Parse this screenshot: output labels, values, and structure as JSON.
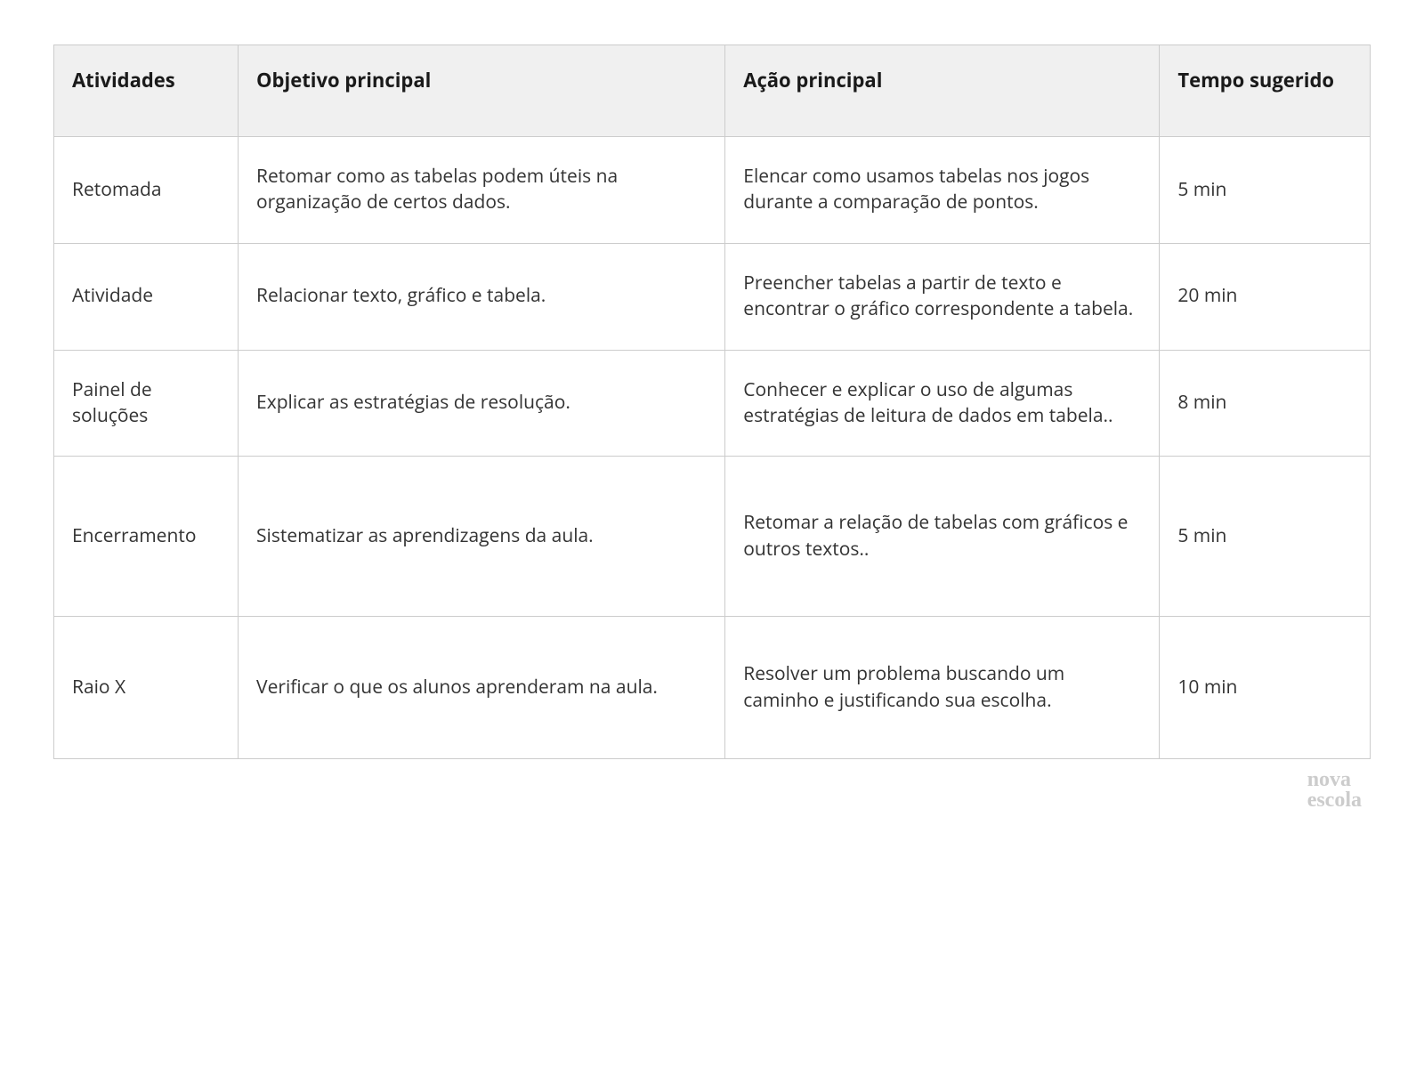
{
  "table": {
    "type": "table",
    "columns": [
      {
        "key": "atividades",
        "label": "Atividades",
        "width_pct": 14
      },
      {
        "key": "objetivo",
        "label": "Objetivo principal",
        "width_pct": 37
      },
      {
        "key": "acao",
        "label": "Ação principal",
        "width_pct": 33
      },
      {
        "key": "tempo",
        "label": "Tempo sugerido",
        "width_pct": 16
      }
    ],
    "rows": [
      {
        "atividades": "Retomada",
        "objetivo": "Retomar como as tabelas podem úteis na organização de certos dados.",
        "acao": "Elencar como usamos tabelas nos jogos durante a comparação de pontos.",
        "tempo": "5 min"
      },
      {
        "atividades": "Atividade",
        "objetivo": "Relacionar texto, gráfico e tabela.",
        "acao": "Preencher tabelas a partir de texto e encontrar o gráfico correspondente a tabela.",
        "tempo": "20 min"
      },
      {
        "atividades": "Painel de soluções",
        "objetivo": "Explicar as estratégias de resolução.",
        "acao": "Conhecer e explicar o uso de algumas estratégias de leitura de dados em tabela..",
        "tempo": "8  min"
      },
      {
        "atividades": "Encerramento",
        "objetivo": "Sistematizar as aprendizagens da aula.",
        "acao": "Retomar a relação de tabelas com gráficos e outros textos..",
        "tempo": "5 min"
      },
      {
        "atividades": "Raio X",
        "objetivo": "Verificar o que os alunos aprenderam na aula.",
        "acao": "Resolver um problema buscando um caminho e justificando sua escolha.",
        "tempo": "10 min"
      }
    ],
    "header_bg": "#f0f0f0",
    "border_color": "#cccccc",
    "header_fontsize": 22,
    "body_fontsize": 21,
    "header_font_weight": 700,
    "text_color": "#333333",
    "header_text_color": "#1a1a1a"
  },
  "logo": {
    "line1": "nova",
    "line2": "escola",
    "color": "#cccccc",
    "fontsize": 24,
    "font_family": "serif"
  },
  "background_color": "#ffffff"
}
